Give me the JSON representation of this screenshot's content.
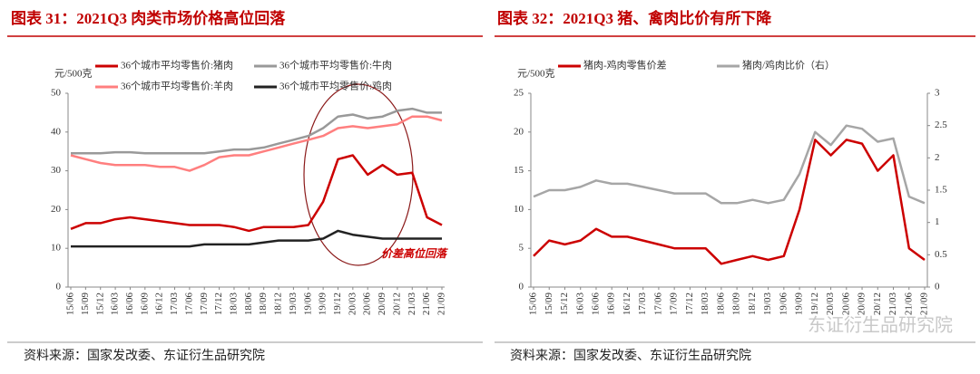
{
  "chart_data": [
    {
      "type": "line",
      "title": "图表 31：2021Q3 肉类市场价格高位回落",
      "y_label": "元/500克",
      "categories": [
        "15/06",
        "15/09",
        "15/12",
        "16/03",
        "16/06",
        "16/09",
        "16/12",
        "17/03",
        "17/06",
        "17/09",
        "17/12",
        "18/03",
        "18/06",
        "18/09",
        "18/12",
        "19/03",
        "19/06",
        "19/09",
        "19/12",
        "20/03",
        "20/06",
        "20/09",
        "20/12",
        "21/03",
        "21/06",
        "21/09"
      ],
      "series": [
        {
          "name": "36个城市平均零售价:猪肉",
          "color": "#cc0000",
          "values": [
            15,
            16.5,
            16.5,
            17.5,
            18,
            17.5,
            17,
            16.5,
            16,
            16,
            16,
            15.5,
            14.5,
            15.5,
            15.5,
            15.5,
            16,
            22,
            33,
            34,
            29,
            31.5,
            29,
            29.5,
            18,
            16
          ]
        },
        {
          "name": "36个城市平均零售价:牛肉",
          "color": "#999999",
          "values": [
            34.5,
            34.5,
            34.5,
            34.8,
            34.8,
            34.5,
            34.5,
            34.5,
            34.5,
            34.5,
            35,
            35.5,
            35.5,
            36,
            37,
            38,
            39,
            41,
            44,
            44.5,
            43.5,
            44,
            45.5,
            46,
            45,
            45
          ]
        },
        {
          "name": "36个城市平均零售价:羊肉",
          "color": "#ff7f7f",
          "values": [
            34,
            33,
            32,
            31.5,
            31.5,
            31.5,
            31,
            31,
            30,
            31.5,
            33.5,
            34,
            34,
            35,
            36,
            37,
            38,
            39,
            41,
            41.5,
            41,
            41.5,
            42,
            44,
            44,
            43
          ]
        },
        {
          "name": "36个城市平均零售价:鸡肉",
          "color": "#222222",
          "values": [
            10.5,
            10.5,
            10.5,
            10.5,
            10.5,
            10.5,
            10.5,
            10.5,
            10.5,
            11,
            11,
            11,
            11,
            11.5,
            12,
            12,
            12,
            12.5,
            14.5,
            13.5,
            13,
            12.5,
            12.5,
            12.5,
            12.5,
            12.5
          ]
        }
      ],
      "ylim": [
        0,
        50
      ],
      "yticks": [
        0,
        10,
        20,
        30,
        40,
        50
      ],
      "annotation": "价差高位回落",
      "source": "资料来源：国家发改委、东证衍生品研究院"
    },
    {
      "type": "line",
      "title": "图表 32：2021Q3 猪、禽肉比价有所下降",
      "y_label": "元/500克",
      "categories": [
        "15/06",
        "15/09",
        "15/12",
        "16/03",
        "16/06",
        "16/09",
        "16/12",
        "17/03",
        "17/06",
        "17/09",
        "17/12",
        "18/03",
        "18/06",
        "18/09",
        "18/12",
        "19/03",
        "19/06",
        "19/09",
        "19/12",
        "20/03",
        "20/06",
        "20/09",
        "20/12",
        "21/03",
        "21/06",
        "21/09"
      ],
      "series": [
        {
          "name": "猪肉-鸡肉零售价差",
          "color": "#cc0000",
          "values": [
            4,
            6,
            5.5,
            6,
            7.5,
            6.5,
            6.5,
            6,
            5.5,
            5,
            5,
            5,
            3,
            3.5,
            4,
            3.5,
            4,
            10,
            19,
            17,
            19,
            18.5,
            15,
            17,
            5,
            3.5
          ]
        },
        {
          "name": "猪肉/鸡肉比价（右）",
          "color": "#a6a6a6",
          "axis": "y2",
          "values": [
            1.4,
            1.5,
            1.5,
            1.55,
            1.65,
            1.6,
            1.6,
            1.55,
            1.5,
            1.45,
            1.45,
            1.45,
            1.3,
            1.3,
            1.35,
            1.3,
            1.35,
            1.75,
            2.4,
            2.2,
            2.5,
            2.45,
            2.25,
            2.3,
            1.4,
            1.3
          ]
        }
      ],
      "ylim": [
        0,
        25
      ],
      "yticks": [
        0,
        5,
        10,
        15,
        20,
        25
      ],
      "y2lim": [
        0,
        3
      ],
      "y2ticks": [
        0,
        0.5,
        1,
        1.5,
        2,
        2.5,
        3
      ],
      "source": "资料来源：国家发改委、东证衍生品研究院"
    }
  ],
  "watermark": "东证衍生品研究院"
}
